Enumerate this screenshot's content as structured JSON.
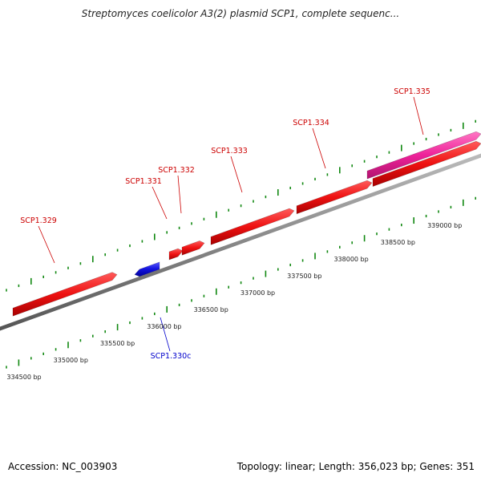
{
  "title": "Streptomyces coelicolor A3(2) plasmid SCP1, complete sequenc...",
  "footer": {
    "accession": "Accession: NC_003903",
    "summary": "Topology: linear; Length: 356,023 bp; Genes: 351"
  },
  "colors": {
    "forward_gene": "#ee1111",
    "reverse_gene": "#1111dd",
    "selected_gene": "#ee2299",
    "tick": "#118811",
    "forward_label": "#cc0000",
    "reverse_label": "#0000cc",
    "backbone": "#888888"
  },
  "scale_labels": [
    "334500 bp",
    "335000 bp",
    "335500 bp",
    "336000 bp",
    "336500 bp",
    "337000 bp",
    "337500 bp",
    "338000 bp",
    "338500 bp",
    "339000 bp"
  ],
  "genes": [
    {
      "name": "SCP1.329",
      "strand": "forward"
    },
    {
      "name": "SCP1.330c",
      "strand": "reverse"
    },
    {
      "name": "SCP1.331",
      "strand": "forward"
    },
    {
      "name": "SCP1.332",
      "strand": "forward"
    },
    {
      "name": "SCP1.333",
      "strand": "forward"
    },
    {
      "name": "SCP1.334",
      "strand": "forward"
    },
    {
      "name": "SCP1.335",
      "strand": "forward"
    }
  ]
}
